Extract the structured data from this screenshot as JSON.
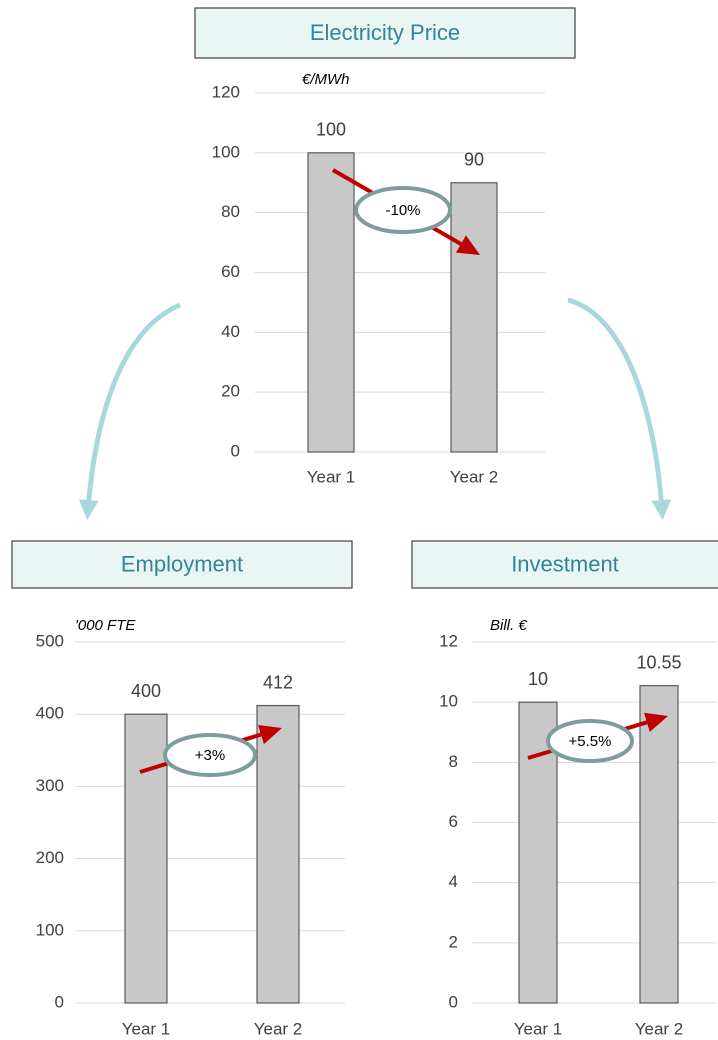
{
  "chart_data": [
    {
      "type": "bar",
      "title": "Electricity Price",
      "unit": "€/MWh",
      "annotation": "-10%",
      "categories": [
        "Year 1",
        "Year 2"
      ],
      "values": [
        100,
        90
      ],
      "color": "#c8c8c8",
      "ylim": [
        0,
        120
      ],
      "yticks": [
        0,
        20,
        40,
        60,
        80,
        100,
        120
      ],
      "grid": true
    },
    {
      "type": "bar",
      "title": "Employment",
      "unit": "'000 FTE",
      "annotation": "+3%",
      "categories": [
        "Year 1",
        "Year 2"
      ],
      "values": [
        400,
        412
      ],
      "color": "#c8c8c8",
      "ylim": [
        0,
        500
      ],
      "yticks": [
        0,
        100,
        200,
        300,
        400,
        500
      ],
      "grid": true
    },
    {
      "type": "bar",
      "title": "Investment",
      "unit": "Bill. €",
      "annotation": "+5.5%",
      "categories": [
        "Year 1",
        "Year 2"
      ],
      "values": [
        10,
        10.55
      ],
      "color": "#c8c8c8",
      "ylim": [
        0,
        12
      ],
      "yticks": [
        0,
        2,
        4,
        6,
        8,
        10,
        12
      ],
      "grid": true
    }
  ]
}
